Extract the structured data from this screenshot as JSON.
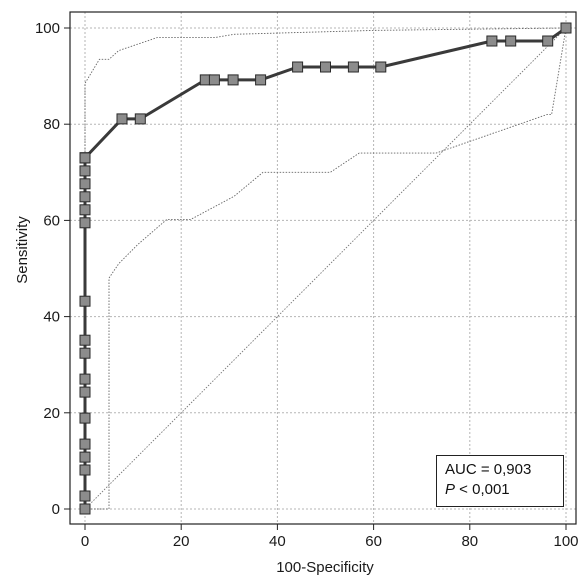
{
  "chart_data": {
    "type": "line",
    "xlabel": "100-Specificity",
    "ylabel": "Sensitivity",
    "xlim": [
      0,
      100
    ],
    "ylim": [
      0,
      100
    ],
    "x_ticks": [
      "0",
      "20",
      "40",
      "60",
      "80",
      "100"
    ],
    "y_ticks": [
      "0",
      "20",
      "40",
      "60",
      "80",
      "100"
    ],
    "grid": true,
    "series": [
      {
        "role": "roc-curve",
        "markers": "square",
        "color": "#3a3a3a",
        "marker_color": "#8c8c8c",
        "x": [
          0,
          0,
          0,
          0,
          0,
          0,
          0,
          0,
          0,
          0,
          0,
          0,
          0,
          0,
          0,
          0,
          0,
          0,
          0,
          0,
          0,
          7.7,
          11.5,
          25,
          26.9,
          30.8,
          36.5,
          44.2,
          50,
          55.8,
          61.5,
          84.6,
          88.5,
          96.2,
          100
        ],
        "y": [
          0,
          2.7,
          8.1,
          10.8,
          13.5,
          18.9,
          24.3,
          27,
          32.4,
          35.1,
          43.2,
          59.5,
          62.2,
          64.9,
          67.6,
          70.3,
          73,
          73,
          73,
          73,
          73,
          81.1,
          81.1,
          89.2,
          89.2,
          89.2,
          89.2,
          91.9,
          91.9,
          91.9,
          91.9,
          97.3,
          97.3,
          97.3,
          100
        ]
      },
      {
        "role": "upper-confidence-bound",
        "color": "#666666",
        "x": [
          0,
          0,
          3,
          5,
          7,
          15,
          27,
          31,
          60,
          100
        ],
        "y": [
          0,
          88.5,
          93.5,
          93.5,
          95.3,
          98,
          98,
          98.7,
          99.5,
          100
        ]
      },
      {
        "role": "lower-confidence-bound",
        "color": "#666666",
        "x": [
          0,
          5,
          5,
          7,
          11,
          17,
          22,
          31,
          37,
          51,
          57,
          73,
          96,
          97,
          100
        ],
        "y": [
          0,
          0,
          48,
          51,
          55,
          60.2,
          60.2,
          65,
          70,
          70,
          74,
          74,
          82,
          82,
          100
        ]
      },
      {
        "role": "reference-diagonal",
        "color": "#777777",
        "x": [
          0,
          100
        ],
        "y": [
          0,
          100
        ]
      }
    ],
    "annotations": {
      "auc": "AUC = 0,903",
      "p_letter": "P",
      "p_rest": " < 0,001"
    }
  }
}
